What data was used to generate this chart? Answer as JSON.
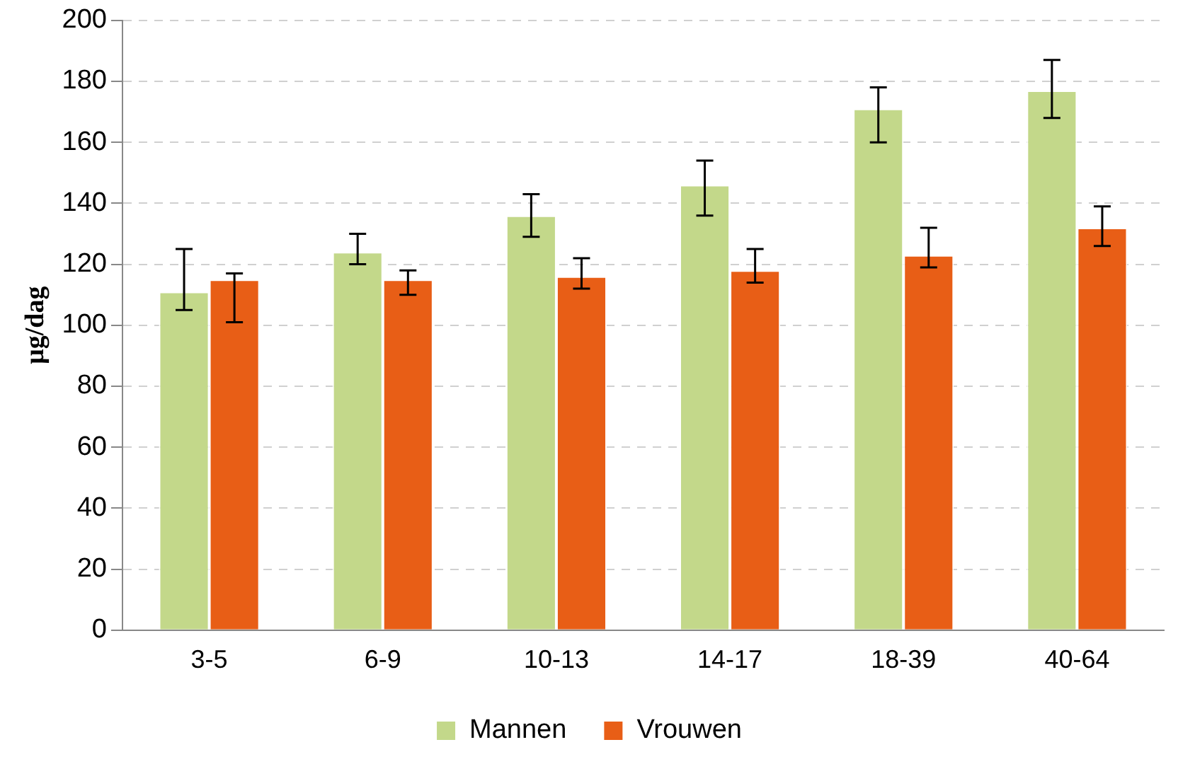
{
  "chart_data": {
    "type": "bar",
    "ylabel": "µg/dag",
    "categories": [
      "3-5",
      "6-9",
      "10-13",
      "14-17",
      "18-39",
      "40-64"
    ],
    "series": [
      {
        "name": "Mannen",
        "color": "#c3d88a",
        "values": [
          111,
          124,
          136,
          146,
          171,
          177
        ],
        "errors": [
          [
            105,
            125
          ],
          [
            120,
            130
          ],
          [
            129,
            143
          ],
          [
            136,
            154
          ],
          [
            160,
            178
          ],
          [
            168,
            187
          ]
        ]
      },
      {
        "name": "Vrouwen",
        "color": "#e85e16",
        "values": [
          115,
          115,
          116,
          118,
          123,
          132
        ],
        "errors": [
          [
            101,
            117
          ],
          [
            110,
            118
          ],
          [
            112,
            122
          ],
          [
            114,
            125
          ],
          [
            119,
            132
          ],
          [
            126,
            139
          ]
        ]
      }
    ],
    "ylim": [
      0,
      200
    ],
    "yticks": [
      0,
      20,
      40,
      60,
      80,
      100,
      120,
      140,
      160,
      180,
      200
    ],
    "grid": "y",
    "legend": "bottom"
  }
}
